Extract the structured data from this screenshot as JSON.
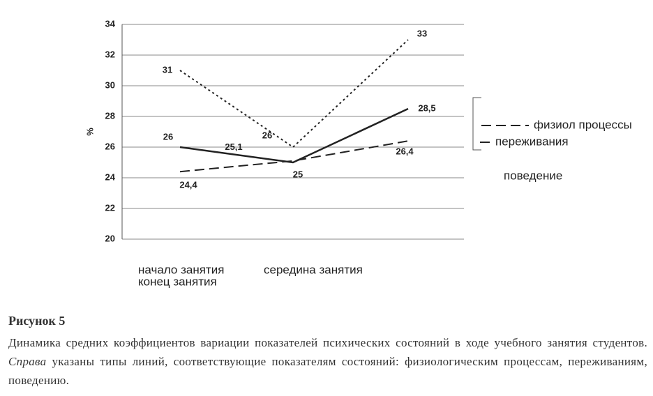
{
  "chart_data": {
    "type": "line",
    "y_label": "%",
    "categories": [
      "начало занятия",
      "середина занятия",
      "конец занятия"
    ],
    "ylim": [
      20,
      34
    ],
    "yticks": [
      20,
      22,
      24,
      26,
      28,
      30,
      32,
      34
    ],
    "grid": true,
    "series": [
      {
        "name": "физиол процессы",
        "color": "#222",
        "style": "dashed",
        "values": [
          24.4,
          25.1,
          26.4
        ],
        "value_labels": [
          "24,4",
          "25,1",
          "26,4"
        ]
      },
      {
        "name": "переживания",
        "color": "#222",
        "style": "dotted",
        "values": [
          31,
          26,
          33
        ]
      },
      {
        "name": "поведение",
        "color": "#222",
        "style": "solid",
        "values": [
          26,
          25,
          28.5
        ],
        "value_labels": [
          "26",
          "25",
          "28,5"
        ]
      }
    ]
  },
  "caption": {
    "title": "Рисунок 5",
    "text_before": "Динамика средних коэффициентов вариации показателей психических состояний в ходе учебного занятия студентов.",
    "text_italic": "Справа",
    "text_after": "указаны типы линий, соответствующие показателям состояний: физиологическим процессам, переживаниям, поведению."
  }
}
